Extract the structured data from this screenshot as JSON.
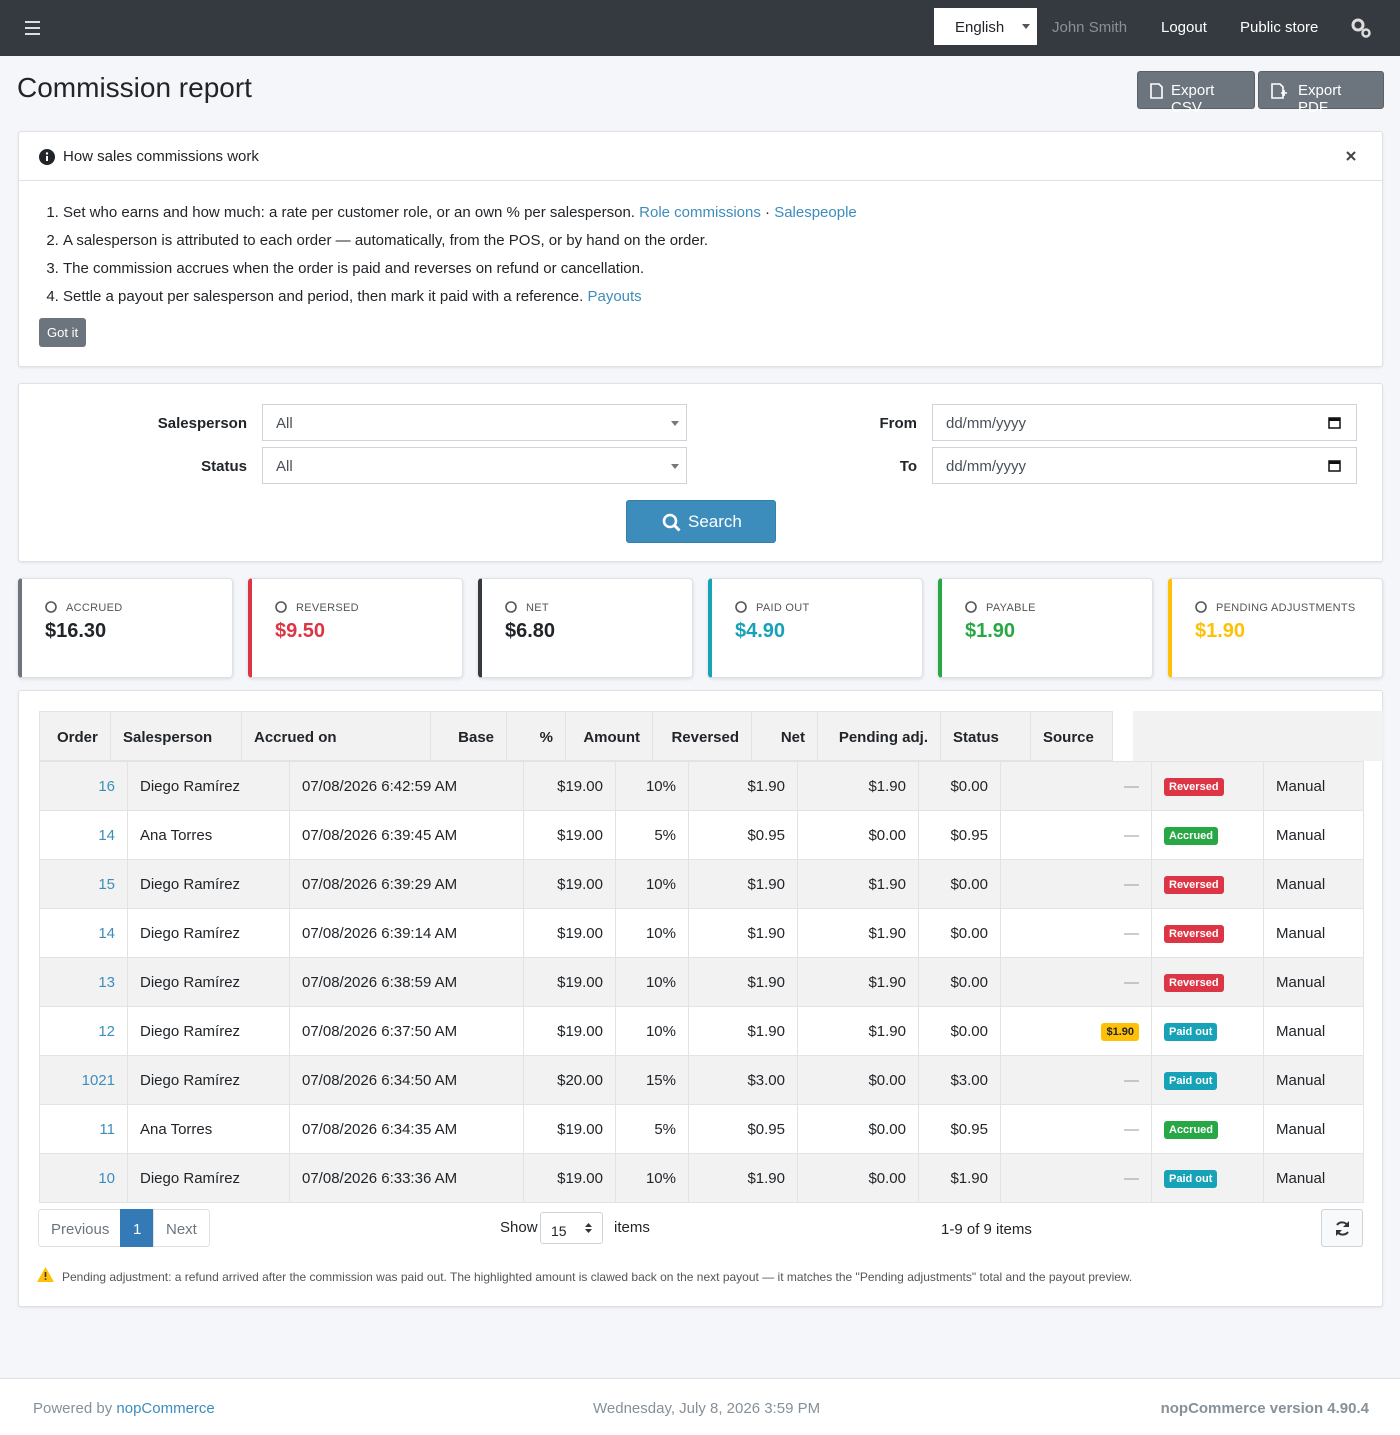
{
  "topbar": {
    "language": "English",
    "user": "John Smith",
    "logout": "Logout",
    "public_store": "Public store"
  },
  "header": {
    "title": "Commission report",
    "export_csv": "Export CSV",
    "export_pdf": "Export PDF"
  },
  "info": {
    "title": "How sales commissions work",
    "steps": [
      {
        "text": "Set who earns and how much: a rate per customer role, or an own % per salesperson.",
        "links": [
          "Role commissions",
          "Salespeople"
        ],
        "separator": "·"
      },
      {
        "text": "A salesperson is attributed to each order — automatically, from the POS, or by hand on the order."
      },
      {
        "text": "The commission accrues when the order is paid and reverses on refund or cancellation."
      },
      {
        "text": "Settle a payout per salesperson and period, then mark it paid with a reference.",
        "links": [
          "Payouts"
        ]
      }
    ],
    "dismiss": "Got it"
  },
  "filters": {
    "salesperson_label": "Salesperson",
    "salesperson_value": "All",
    "status_label": "Status",
    "status_value": "All",
    "from_label": "From",
    "to_label": "To",
    "date_placeholder": "dd/mm/yyyy",
    "search": "Search"
  },
  "summary": [
    {
      "label": "ACCRUED",
      "value": "$16.30",
      "color": "#6c757d",
      "value_color": "#212529"
    },
    {
      "label": "REVERSED",
      "value": "$9.50",
      "color": "#dc3545",
      "value_color": "#dc3545"
    },
    {
      "label": "NET",
      "value": "$6.80",
      "color": "#343a40",
      "value_color": "#212529"
    },
    {
      "label": "PAID OUT",
      "value": "$4.90",
      "color": "#17a2b8",
      "value_color": "#17a2b8"
    },
    {
      "label": "PAYABLE",
      "value": "$1.90",
      "color": "#28a745",
      "value_color": "#28a745"
    },
    {
      "label": "PENDING ADJUSTMENTS",
      "value": "$1.90",
      "color": "#ffc107",
      "value_color": "#ffc107"
    }
  ],
  "table": {
    "columns": [
      "Order",
      "Salesperson",
      "Accrued on",
      "Base",
      "%",
      "Amount",
      "Reversed",
      "Net",
      "Pending adj.",
      "Status",
      "Source"
    ],
    "rows": [
      {
        "cells": [
          "16",
          "Diego Ramírez",
          "07/08/2026 6:42:59 AM",
          "$19.00",
          "10%",
          "$1.90",
          "$1.90",
          "$0.00",
          "—"
        ],
        "status": "Reversed",
        "status_color": "#dc3545",
        "source": "Manual"
      },
      {
        "cells": [
          "14",
          "Ana Torres",
          "07/08/2026 6:39:45 AM",
          "$19.00",
          "5%",
          "$0.95",
          "$0.00",
          "$0.95",
          "—"
        ],
        "status": "Accrued",
        "status_color": "#28a745",
        "source": "Manual"
      },
      {
        "cells": [
          "15",
          "Diego Ramírez",
          "07/08/2026 6:39:29 AM",
          "$19.00",
          "10%",
          "$1.90",
          "$1.90",
          "$0.00",
          "—"
        ],
        "status": "Reversed",
        "status_color": "#dc3545",
        "source": "Manual"
      },
      {
        "cells": [
          "14",
          "Diego Ramírez",
          "07/08/2026 6:39:14 AM",
          "$19.00",
          "10%",
          "$1.90",
          "$1.90",
          "$0.00",
          "—"
        ],
        "status": "Reversed",
        "status_color": "#dc3545",
        "source": "Manual"
      },
      {
        "cells": [
          "13",
          "Diego Ramírez",
          "07/08/2026 6:38:59 AM",
          "$19.00",
          "10%",
          "$1.90",
          "$1.90",
          "$0.00",
          "—"
        ],
        "status": "Reversed",
        "status_color": "#dc3545",
        "source": "Manual"
      },
      {
        "cells": [
          "12",
          "Diego Ramírez",
          "07/08/2026 6:37:50 AM",
          "$19.00",
          "10%",
          "$1.90",
          "$1.90",
          "$0.00",
          "$1.90"
        ],
        "pending_highlight": "#ffc107",
        "status": "Paid out",
        "status_color": "#17a2b8",
        "source": "Manual"
      },
      {
        "cells": [
          "1021",
          "Diego Ramírez",
          "07/08/2026 6:34:50 AM",
          "$20.00",
          "15%",
          "$3.00",
          "$0.00",
          "$3.00",
          "—"
        ],
        "status": "Paid out",
        "status_color": "#17a2b8",
        "source": "Manual"
      },
      {
        "cells": [
          "11",
          "Ana Torres",
          "07/08/2026 6:34:35 AM",
          "$19.00",
          "5%",
          "$0.95",
          "$0.00",
          "$0.95",
          "—"
        ],
        "status": "Accrued",
        "status_color": "#28a745",
        "source": "Manual"
      },
      {
        "cells": [
          "10",
          "Diego Ramírez",
          "07/08/2026 6:33:36 AM",
          "$19.00",
          "10%",
          "$1.90",
          "$0.00",
          "$1.90",
          "—"
        ],
        "status": "Paid out",
        "status_color": "#17a2b8",
        "source": "Manual"
      }
    ]
  },
  "pagination": {
    "previous": "Previous",
    "page": "1",
    "next": "Next",
    "show": "Show",
    "page_size": "15",
    "items": "items",
    "summary": "1-9 of 9 items"
  },
  "note": "Pending adjustment: a refund arrived after the commission was paid out. The highlighted amount is clawed back on the next payout — it matches the \"Pending adjustments\" total and the payout preview.",
  "footer": {
    "powered_by": "Powered by",
    "brand": "nopCommerce",
    "date": "Wednesday, July 8, 2026 3:59 PM",
    "version": "nopCommerce version 4.90.4"
  }
}
